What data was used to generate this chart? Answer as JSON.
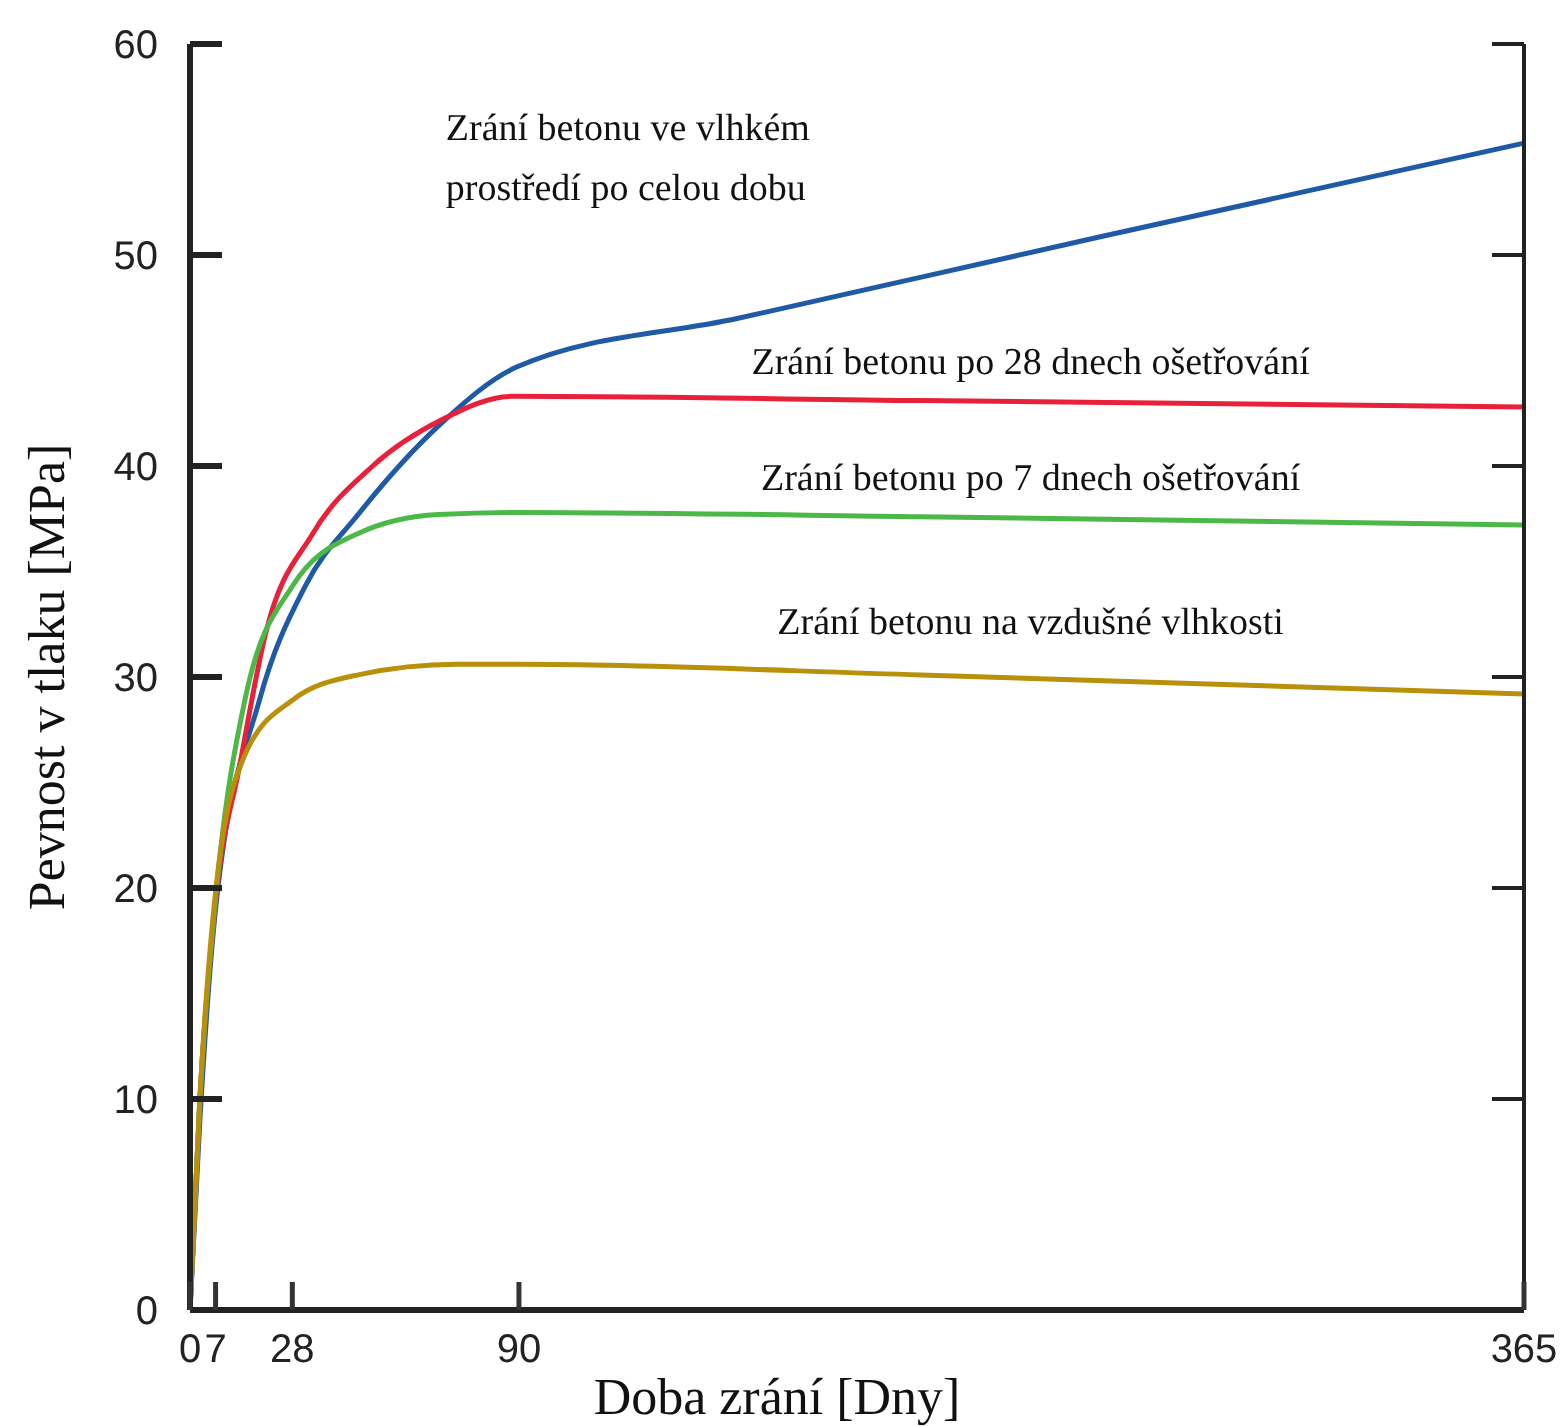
{
  "chart_data": {
    "type": "line",
    "xlabel": "Doba zrání [Dny]",
    "ylabel": "Pevnost v tlaku [MPa]",
    "xlim": [
      0,
      365
    ],
    "ylim": [
      0,
      60
    ],
    "xticks": [
      0,
      7,
      28,
      90,
      365
    ],
    "yticks": [
      0,
      10,
      20,
      30,
      40,
      50,
      60
    ],
    "grid": false,
    "marker": "none",
    "line_style": "solid",
    "series": [
      {
        "name": "Zrání betonu ve vlhkém prostředí po celou dobu",
        "color": "#1f5aa6",
        "x": [
          0,
          2.7,
          7,
          19,
          31.5,
          46,
          68,
          89.5,
          150,
          250,
          365
        ],
        "values": [
          0,
          9,
          19,
          28.9,
          34.3,
          37.7,
          41.9,
          44.7,
          47,
          50.9,
          55.3
        ]
      },
      {
        "name": "Zrání betonu po 28 dnech ošetřování",
        "color": "#e8203a",
        "x": [
          0,
          2.7,
          7,
          13.6,
          20.6,
          33.6,
          50,
          69,
          88,
          200,
          365
        ],
        "values": [
          0,
          10,
          19.4,
          25.8,
          32,
          36.8,
          40,
          42.2,
          43.3,
          43.1,
          42.8
        ]
      },
      {
        "name": "Zrání betonu po 7 dnech ošetřování",
        "color": "#4cb847",
        "x": [
          0,
          2.7,
          7,
          15,
          28,
          46,
          68,
          90,
          200,
          365
        ],
        "values": [
          0,
          10,
          19.5,
          28.9,
          34.3,
          36.8,
          37.7,
          37.8,
          37.6,
          37.2
        ]
      },
      {
        "name": "Zrání betonu na vzdušné vlhkosti",
        "color": "#b8900a",
        "x": [
          0,
          2.7,
          7,
          15,
          28,
          46,
          73,
          90,
          200,
          365
        ],
        "values": [
          0,
          10,
          19.8,
          26.3,
          28.9,
          30.1,
          30.6,
          30.6,
          30.1,
          29.2
        ]
      }
    ]
  }
}
